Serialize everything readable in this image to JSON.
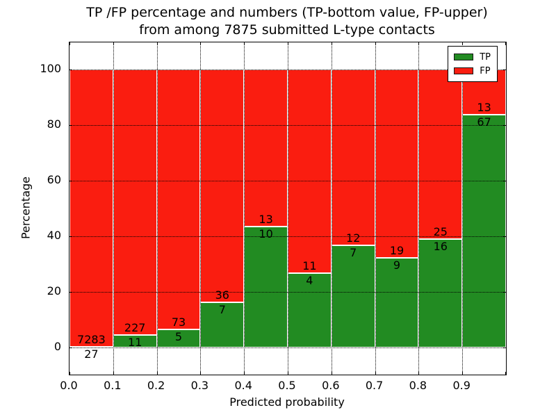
{
  "figure": {
    "title_line1": "TP /FP percentage and numbers (TP-bottom value, FP-upper)",
    "title_line2": "from among 7875 submitted L-type contacts"
  },
  "chart_data": {
    "type": "bar",
    "subtype": "stacked-percentage",
    "title": "TP /FP percentage and numbers (TP-bottom value, FP-upper)\nfrom among 7875 submitted L-type contacts",
    "xlabel": "Predicted probability",
    "ylabel": "Percentage",
    "total_contacts": 7875,
    "bin_width": 0.1,
    "categories": [
      "0.0-0.1",
      "0.1-0.2",
      "0.2-0.3",
      "0.3-0.4",
      "0.4-0.5",
      "0.5-0.6",
      "0.6-0.7",
      "0.7-0.8",
      "0.8-0.9",
      "0.9-1.0"
    ],
    "series": [
      {
        "name": "TP",
        "color": "#228b22",
        "position": "bottom",
        "values": [
          27,
          11,
          5,
          7,
          10,
          4,
          7,
          9,
          16,
          67
        ]
      },
      {
        "name": "FP",
        "color": "#fa1d10",
        "position": "top",
        "values": [
          7283,
          227,
          73,
          36,
          13,
          11,
          12,
          19,
          25,
          13
        ]
      }
    ],
    "tp_percent": [
      0.37,
      4.62,
      6.41,
      16.28,
      43.48,
      26.67,
      36.84,
      32.14,
      39.02,
      83.75
    ],
    "x_tick_labels": [
      "0.0",
      "0.1",
      "0.2",
      "0.3",
      "0.4",
      "0.5",
      "0.6",
      "0.7",
      "0.8",
      "0.9"
    ],
    "y_tick_values": [
      0,
      20,
      40,
      60,
      80,
      100
    ],
    "xlim": [
      0.0,
      1.0
    ],
    "ylim": [
      -10,
      110
    ],
    "grid": "dotted",
    "legend_position": "upper right"
  }
}
